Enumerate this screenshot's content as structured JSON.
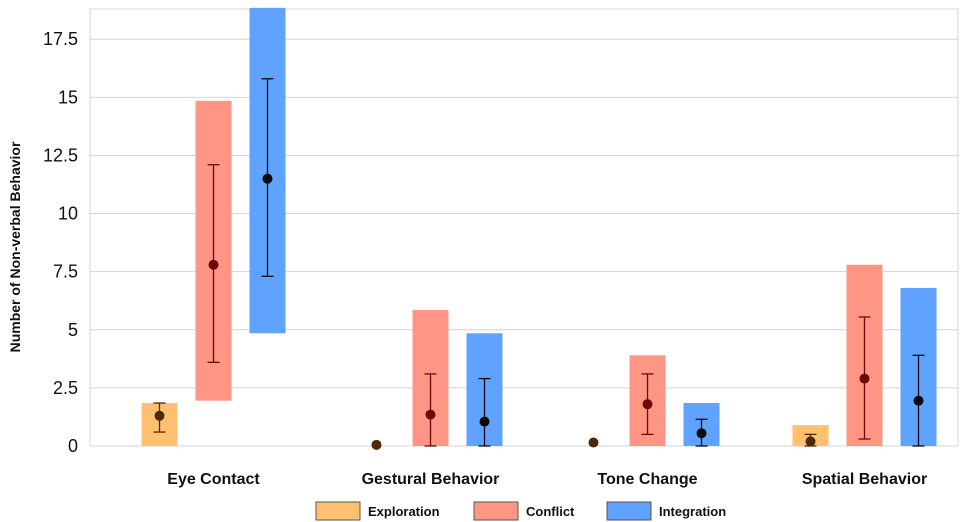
{
  "chart_data": {
    "type": "bar",
    "ylabel": "Number of Non-verbal Behavior",
    "ylim": [
      0,
      18.8
    ],
    "yticks": [
      0,
      2.5,
      5,
      7.5,
      10,
      12.5,
      15,
      17.5
    ],
    "ytick_labels": [
      "0",
      "2.5",
      "5",
      "7.5",
      "10",
      "12.5",
      "15",
      "17.5"
    ],
    "grid": true,
    "legend_position": "bottom-center",
    "categories": [
      "Eye Contact",
      "Gestural Behavior",
      "Tone Change",
      "Spatial Behavior"
    ],
    "series": [
      {
        "name": "Exploration",
        "color": "#FFC170",
        "bar_low": [
          0,
          0,
          0,
          0
        ],
        "bar_high": [
          1.85,
          0,
          0,
          0.9
        ],
        "mean": [
          1.3,
          0.05,
          0.15,
          0.2
        ],
        "err_low": [
          0.6,
          null,
          null,
          0
        ],
        "err_high": [
          1.85,
          null,
          null,
          0.5
        ],
        "point_color": "#4a2a0a"
      },
      {
        "name": "Conflict",
        "color": "#FF9585",
        "bar_low": [
          1.95,
          0,
          0,
          0
        ],
        "bar_high": [
          14.85,
          5.85,
          3.9,
          7.8
        ],
        "mean": [
          7.8,
          1.35,
          1.8,
          2.9
        ],
        "err_low": [
          3.6,
          0,
          0.5,
          0.3
        ],
        "err_high": [
          12.1,
          3.1,
          3.1,
          5.55
        ],
        "point_color": "#6a0a0a"
      },
      {
        "name": "Integration",
        "color": "#5FA2FF",
        "bar_low": [
          4.85,
          0,
          0,
          0
        ],
        "bar_high": [
          18.85,
          4.85,
          1.85,
          6.8
        ],
        "mean": [
          11.5,
          1.05,
          0.55,
          1.95
        ],
        "err_low": [
          7.3,
          0,
          0,
          0
        ],
        "err_high": [
          15.8,
          2.9,
          1.15,
          3.9
        ],
        "point_color": "#0a0a0a"
      }
    ]
  }
}
